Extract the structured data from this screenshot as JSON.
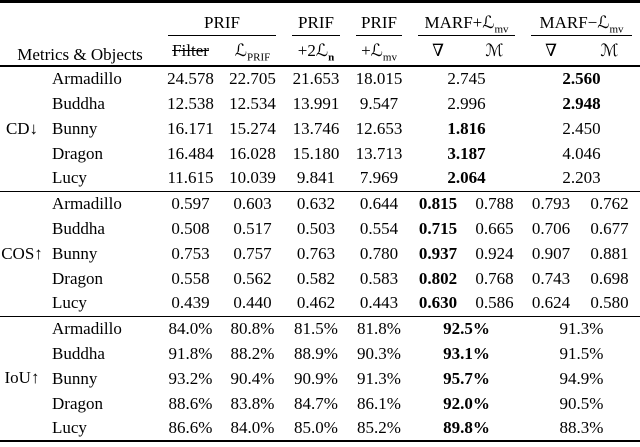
{
  "colors": {
    "background": "#ffffff",
    "text": "#000000",
    "rule": "#000000"
  },
  "table": {
    "corner_header": "Metrics & Objects",
    "column_groups": [
      {
        "label": "PRIF",
        "span": 2
      },
      {
        "label": "PRIF",
        "span": 1
      },
      {
        "label": "PRIF",
        "span": 1
      },
      {
        "label": "MARF+ℒ_{mv}",
        "span": 2
      },
      {
        "label": "MARF−ℒ_{mv}",
        "span": 2
      }
    ],
    "sub_columns": [
      {
        "label": "Filter",
        "strike": true
      },
      {
        "label": "ℒ_{PRIF}"
      },
      {
        "label": "+2ℒ_{**n**}"
      },
      {
        "label": "+ℒ_{mv}"
      },
      {
        "label": "∇"
      },
      {
        "label": "ℳ"
      },
      {
        "label": "∇"
      },
      {
        "label": "ℳ"
      }
    ],
    "sections": [
      {
        "metric": "CD↓",
        "rows": [
          {
            "object": "Armadillo",
            "cells": [
              {
                "v": "24.578"
              },
              {
                "v": "22.705"
              },
              {
                "v": "21.653"
              },
              {
                "v": "18.015"
              },
              {
                "v": "2.745",
                "span": 2
              },
              {
                "v": "2.560",
                "span": 2,
                "bold": true
              }
            ]
          },
          {
            "object": "Buddha",
            "cells": [
              {
                "v": "12.538"
              },
              {
                "v": "12.534"
              },
              {
                "v": "13.991"
              },
              {
                "v": "9.547"
              },
              {
                "v": "2.996",
                "span": 2
              },
              {
                "v": "2.948",
                "span": 2,
                "bold": true
              }
            ]
          },
          {
            "object": "Bunny",
            "cells": [
              {
                "v": "16.171"
              },
              {
                "v": "15.274"
              },
              {
                "v": "13.746"
              },
              {
                "v": "12.653"
              },
              {
                "v": "1.816",
                "span": 2,
                "bold": true
              },
              {
                "v": "2.450",
                "span": 2
              }
            ]
          },
          {
            "object": "Dragon",
            "cells": [
              {
                "v": "16.484"
              },
              {
                "v": "16.028"
              },
              {
                "v": "15.180"
              },
              {
                "v": "13.713"
              },
              {
                "v": "3.187",
                "span": 2,
                "bold": true
              },
              {
                "v": "4.046",
                "span": 2
              }
            ]
          },
          {
            "object": "Lucy",
            "cells": [
              {
                "v": "11.615"
              },
              {
                "v": "10.039"
              },
              {
                "v": "9.841"
              },
              {
                "v": "7.969"
              },
              {
                "v": "2.064",
                "span": 2,
                "bold": true
              },
              {
                "v": "2.203",
                "span": 2
              }
            ]
          }
        ]
      },
      {
        "metric": "COS↑",
        "rows": [
          {
            "object": "Armadillo",
            "cells": [
              {
                "v": "0.597"
              },
              {
                "v": "0.603"
              },
              {
                "v": "0.632"
              },
              {
                "v": "0.644"
              },
              {
                "v": "0.815",
                "bold": true
              },
              {
                "v": "0.788"
              },
              {
                "v": "0.793"
              },
              {
                "v": "0.762"
              }
            ]
          },
          {
            "object": "Buddha",
            "cells": [
              {
                "v": "0.508"
              },
              {
                "v": "0.517"
              },
              {
                "v": "0.503"
              },
              {
                "v": "0.554"
              },
              {
                "v": "0.715",
                "bold": true
              },
              {
                "v": "0.665"
              },
              {
                "v": "0.706"
              },
              {
                "v": "0.677"
              }
            ]
          },
          {
            "object": "Bunny",
            "cells": [
              {
                "v": "0.753"
              },
              {
                "v": "0.757"
              },
              {
                "v": "0.763"
              },
              {
                "v": "0.780"
              },
              {
                "v": "0.937",
                "bold": true
              },
              {
                "v": "0.924"
              },
              {
                "v": "0.907"
              },
              {
                "v": "0.881"
              }
            ]
          },
          {
            "object": "Dragon",
            "cells": [
              {
                "v": "0.558"
              },
              {
                "v": "0.562"
              },
              {
                "v": "0.582"
              },
              {
                "v": "0.583"
              },
              {
                "v": "0.802",
                "bold": true
              },
              {
                "v": "0.768"
              },
              {
                "v": "0.743"
              },
              {
                "v": "0.698"
              }
            ]
          },
          {
            "object": "Lucy",
            "cells": [
              {
                "v": "0.439"
              },
              {
                "v": "0.440"
              },
              {
                "v": "0.462"
              },
              {
                "v": "0.443"
              },
              {
                "v": "0.630",
                "bold": true
              },
              {
                "v": "0.586"
              },
              {
                "v": "0.624"
              },
              {
                "v": "0.580"
              }
            ]
          }
        ]
      },
      {
        "metric": "IoU↑",
        "rows": [
          {
            "object": "Armadillo",
            "cells": [
              {
                "v": "84.0%"
              },
              {
                "v": "80.8%"
              },
              {
                "v": "81.5%"
              },
              {
                "v": "81.8%"
              },
              {
                "v": "92.5%",
                "span": 2,
                "bold": true
              },
              {
                "v": "91.3%",
                "span": 2
              }
            ]
          },
          {
            "object": "Buddha",
            "cells": [
              {
                "v": "91.8%"
              },
              {
                "v": "88.2%"
              },
              {
                "v": "88.9%"
              },
              {
                "v": "90.3%"
              },
              {
                "v": "93.1%",
                "span": 2,
                "bold": true
              },
              {
                "v": "91.5%",
                "span": 2
              }
            ]
          },
          {
            "object": "Bunny",
            "cells": [
              {
                "v": "93.2%"
              },
              {
                "v": "90.4%"
              },
              {
                "v": "90.9%"
              },
              {
                "v": "91.3%"
              },
              {
                "v": "95.7%",
                "span": 2,
                "bold": true
              },
              {
                "v": "94.9%",
                "span": 2
              }
            ]
          },
          {
            "object": "Dragon",
            "cells": [
              {
                "v": "88.6%"
              },
              {
                "v": "83.8%"
              },
              {
                "v": "84.7%"
              },
              {
                "v": "86.1%"
              },
              {
                "v": "92.0%",
                "span": 2,
                "bold": true
              },
              {
                "v": "90.5%",
                "span": 2
              }
            ]
          },
          {
            "object": "Lucy",
            "cells": [
              {
                "v": "86.6%"
              },
              {
                "v": "84.0%"
              },
              {
                "v": "85.0%"
              },
              {
                "v": "85.2%"
              },
              {
                "v": "89.8%",
                "span": 2,
                "bold": true
              },
              {
                "v": "88.3%",
                "span": 2
              }
            ]
          }
        ]
      }
    ]
  }
}
